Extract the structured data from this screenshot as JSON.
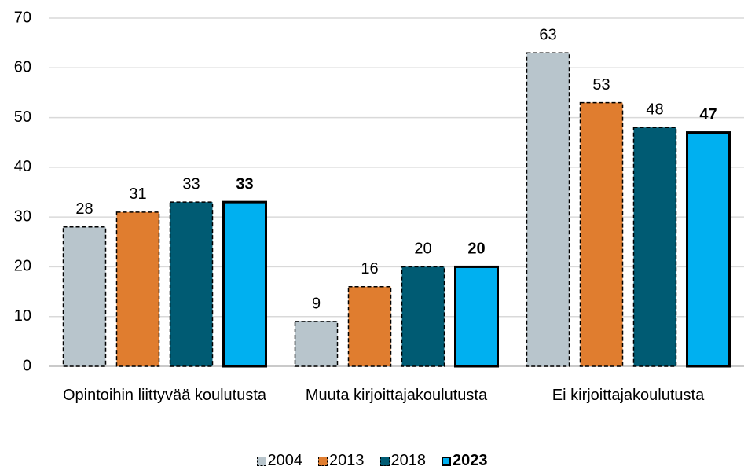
{
  "chart_data": {
    "type": "bar",
    "categories": [
      "Opintoihin liittyvää koulutusta",
      "Muuta kirjoittajakoulutusta",
      "Ei kirjoittajakoulutusta"
    ],
    "series": [
      {
        "name": "2004",
        "color": "#b8c5cc",
        "border": "dashed",
        "bold": false,
        "values": [
          28,
          9,
          63
        ]
      },
      {
        "name": "2013",
        "color": "#e07d2f",
        "border": "dashed",
        "bold": false,
        "values": [
          31,
          16,
          53
        ]
      },
      {
        "name": "2018",
        "color": "#005b73",
        "border": "dashed",
        "bold": false,
        "values": [
          33,
          20,
          48
        ]
      },
      {
        "name": "2023",
        "color": "#00b0f0",
        "border": "solid",
        "bold": true,
        "values": [
          33,
          20,
          47
        ]
      }
    ],
    "ylim": [
      0,
      70
    ],
    "yticks": [
      0,
      10,
      20,
      30,
      40,
      50,
      60,
      70
    ],
    "grid": true,
    "legend": "bottom"
  }
}
